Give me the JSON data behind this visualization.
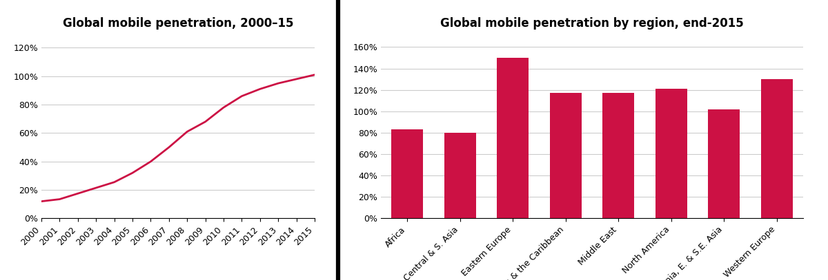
{
  "line_title": "Global mobile penetration, 2000–15",
  "bar_title": "Global mobile penetration by region, end-2015",
  "line_years": [
    2000,
    2001,
    2002,
    2003,
    2004,
    2005,
    2006,
    2007,
    2008,
    2009,
    2010,
    2011,
    2012,
    2013,
    2014,
    2015
  ],
  "line_values": [
    0.12,
    0.135,
    0.175,
    0.215,
    0.255,
    0.32,
    0.4,
    0.5,
    0.61,
    0.68,
    0.78,
    0.86,
    0.91,
    0.95,
    0.98,
    1.01
  ],
  "line_color": "#CC1144",
  "line_yticks": [
    0,
    0.2,
    0.4,
    0.6,
    0.8,
    1.0,
    1.2
  ],
  "bar_categories": [
    "Africa",
    "Central & S. Asia",
    "Eastern Europe",
    "LatAm & the Caribbean",
    "Middle East",
    "North America",
    "Oceania, E. & S.E. Asia",
    "Western Europe"
  ],
  "bar_values": [
    0.83,
    0.8,
    1.5,
    1.17,
    1.17,
    1.21,
    1.02,
    1.3
  ],
  "bar_color": "#CC1144",
  "bar_yticks": [
    0,
    0.2,
    0.4,
    0.6,
    0.8,
    1.0,
    1.2,
    1.4,
    1.6
  ],
  "divider_color": "#000000",
  "background_color": "#ffffff",
  "title_fontsize": 12,
  "tick_fontsize": 9,
  "grid_color": "#cccccc"
}
